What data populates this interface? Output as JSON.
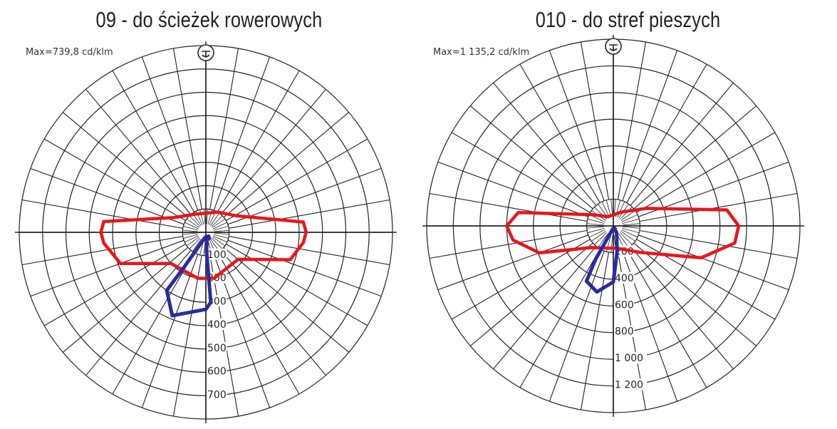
{
  "chart_data": [
    {
      "type": "polar",
      "title": "09 - do ścieżek rowerowych",
      "annotation": "Max=739,8 cd/klm",
      "radial_ticks": [
        "100",
        "200",
        "300",
        "400",
        "500",
        "600",
        "700"
      ],
      "radial_max": 800,
      "angular_step_deg": 10,
      "grid": true,
      "series": [
        {
          "color": "#e8161b",
          "points": [
            [
              -150,
              90
            ],
            [
              -115,
              150
            ],
            [
              -96,
              440
            ],
            [
              -90,
              450
            ],
            [
              -84,
              440
            ],
            [
              -70,
              390
            ],
            [
              -48,
              200
            ],
            [
              -10,
              200
            ],
            [
              10,
              200
            ],
            [
              50,
              180
            ],
            [
              72,
              380
            ],
            [
              84,
              420
            ],
            [
              90,
              430
            ],
            [
              96,
              420
            ],
            [
              118,
              150
            ],
            [
              150,
              100
            ]
          ]
        },
        {
          "color": "#2a2aa0",
          "points": [
            [
              -5,
              20
            ],
            [
              -32,
              175
            ],
            [
              -34,
              300
            ],
            [
              -22,
              385
            ],
            [
              0,
              330
            ],
            [
              4,
              300
            ],
            [
              2,
              80
            ],
            [
              13,
              25
            ],
            [
              30,
              30
            ],
            [
              35,
              20
            ]
          ]
        }
      ]
    },
    {
      "type": "polar",
      "title": "010 - do stref pieszych",
      "annotation": "Max=1 135,2 cd/klm",
      "radial_ticks": [
        "200",
        "400",
        "600",
        "800",
        "1 000",
        "1 200"
      ],
      "radial_max": 1400,
      "angular_step_deg": 10,
      "grid": true,
      "series": [
        {
          "color": "#e8161b",
          "points": [
            [
              -150,
              80
            ],
            [
              -118,
              180
            ],
            [
              -98,
              720
            ],
            [
              -90,
              800
            ],
            [
              -82,
              760
            ],
            [
              -70,
              590
            ],
            [
              -45,
              230
            ],
            [
              -10,
              170
            ],
            [
              10,
              170
            ],
            [
              45,
              280
            ],
            [
              70,
              700
            ],
            [
              82,
              920
            ],
            [
              90,
              940
            ],
            [
              98,
              860
            ],
            [
              118,
              280
            ],
            [
              150,
              120
            ]
          ]
        },
        {
          "color": "#2a2aa0",
          "points": [
            [
              -8,
              20
            ],
            [
              -28,
              280
            ],
            [
              -26,
              460
            ],
            [
              -14,
              510
            ],
            [
              0,
              420
            ],
            [
              8,
              200
            ],
            [
              25,
              60
            ],
            [
              30,
              20
            ]
          ]
        }
      ]
    }
  ]
}
